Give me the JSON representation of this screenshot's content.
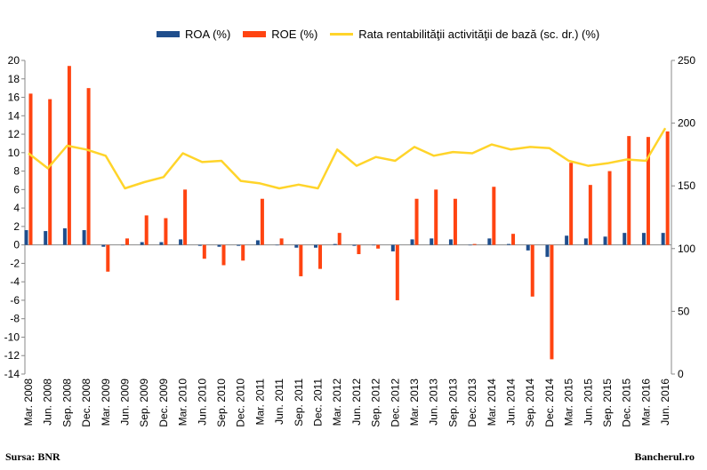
{
  "chart_data": {
    "type": "bar+line",
    "categories": [
      "Mar. 2008",
      "Jun. 2008",
      "Sep. 2008",
      "Dec. 2008",
      "Mar. 2009",
      "Jun. 2009",
      "Sep. 2009",
      "Dec. 2009",
      "Mar. 2010",
      "Jun. 2010",
      "Sep. 2010",
      "Dec. 2010",
      "Mar. 2011",
      "Jun. 2011",
      "Sep. 2011",
      "Dec. 2011",
      "Mar. 2012",
      "Jun. 2012",
      "Sep. 2012",
      "Dec. 2012",
      "Mar. 2013",
      "Jun. 2013",
      "Sep. 2013",
      "Dec. 2013",
      "Mar. 2014",
      "Jun. 2014",
      "Sep. 2014",
      "Dec. 2014",
      "Mar. 2015",
      "Jun. 2015",
      "Sep. 2015",
      "Dec. 2015",
      "Mar. 2016",
      "Jun. 2016"
    ],
    "series": [
      {
        "name": "ROA (%)",
        "kind": "bar",
        "axis": "left",
        "color": "#1f4e8c",
        "values": [
          1.6,
          1.5,
          1.8,
          1.6,
          -0.2,
          0.0,
          0.3,
          0.3,
          0.6,
          -0.1,
          -0.2,
          -0.1,
          0.5,
          0.0,
          -0.3,
          -0.3,
          0.1,
          -0.1,
          0.0,
          -0.7,
          0.6,
          0.7,
          0.6,
          0.0,
          0.7,
          0.1,
          -0.6,
          -1.3,
          1.0,
          0.7,
          0.9,
          1.3,
          1.3,
          1.3
        ]
      },
      {
        "name": "ROE (%)",
        "kind": "bar",
        "axis": "left",
        "color": "#ff4411",
        "values": [
          16.4,
          15.8,
          19.4,
          17.0,
          -2.9,
          0.7,
          3.2,
          2.9,
          6.0,
          -1.5,
          -2.2,
          -1.7,
          5.0,
          0.7,
          -3.4,
          -2.6,
          1.3,
          -1.0,
          -0.4,
          -6.0,
          5.0,
          6.0,
          5.0,
          0.1,
          6.3,
          1.2,
          -5.6,
          -12.4,
          8.9,
          6.5,
          8.0,
          11.8,
          11.7,
          12.3
        ]
      },
      {
        "name": "Rata rentabilităţii activităţii de bază (sc. dr.) (%)",
        "kind": "line",
        "axis": "right",
        "color": "#ffd42a",
        "values": [
          176,
          164,
          182,
          179,
          174,
          148,
          153,
          157,
          176,
          169,
          170,
          154,
          152,
          148,
          151,
          148,
          179,
          166,
          173,
          170,
          181,
          174,
          177,
          176,
          183,
          179,
          181,
          180,
          170,
          166,
          168,
          171,
          170,
          196
        ]
      }
    ],
    "y_left": {
      "min": -14,
      "max": 20,
      "ticks": [
        -14,
        -12,
        -10,
        -8,
        -6,
        -4,
        -2,
        0,
        2,
        4,
        6,
        8,
        10,
        12,
        14,
        16,
        18,
        20
      ]
    },
    "y_right": {
      "min": 0,
      "max": 250,
      "ticks": [
        0,
        50,
        100,
        150,
        200,
        250
      ]
    },
    "grid": false,
    "legend_position": "top"
  },
  "legend": {
    "roa": "ROA (%)",
    "roe": "ROE (%)",
    "core": "Rata rentabilităţii activităţii de bază (sc. dr.) (%)",
    "roa_color": "#1f4e8c",
    "roe_color": "#ff4411",
    "core_color": "#ffd42a"
  },
  "footer": {
    "source": "Sursa: BNR",
    "brand": "Bancherul.ro"
  }
}
